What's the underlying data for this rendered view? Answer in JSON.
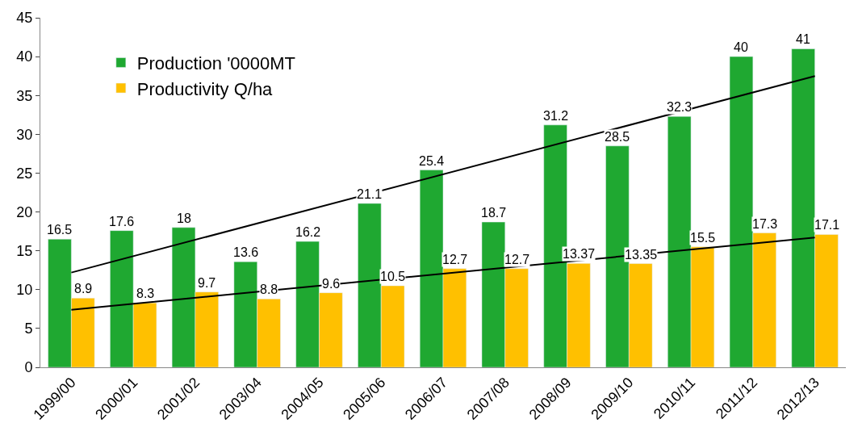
{
  "chart_data": {
    "type": "bar",
    "categories": [
      "1999/00",
      "2000/01",
      "2001/02",
      "2003/04",
      "2004/05",
      "2005/06",
      "2006/07",
      "2007/08",
      "2008/09",
      "2009/10",
      "2010/11",
      "2011/12",
      "2012/13"
    ],
    "series": [
      {
        "name": "Production '0000MT",
        "color": "#1fa831",
        "values": [
          16.5,
          17.6,
          18,
          13.6,
          16.2,
          21.1,
          25.4,
          18.7,
          31.2,
          28.5,
          32.3,
          40,
          41
        ],
        "value_labels": [
          "16.5",
          "17.6",
          "18",
          "13.6",
          "16.2",
          "21.1",
          "25.4",
          "18.7",
          "31.2",
          "28.5",
          "32.3",
          "40",
          "41"
        ]
      },
      {
        "name": "Productivity Q/ha",
        "color": "#ffc000",
        "values": [
          8.9,
          8.3,
          9.7,
          8.8,
          9.6,
          10.5,
          12.7,
          12.7,
          13.37,
          13.35,
          15.5,
          17.3,
          17.1
        ],
        "value_labels": [
          "8.9",
          "8.3",
          "9.7",
          "8.8",
          "9.6",
          "10.5",
          "12.7",
          "12.7",
          "13.37",
          "13.35",
          "15.5",
          "17.3",
          "17.1"
        ]
      },
      {
        "type": "line",
        "color": "#000000",
        "x": [
          "1999/00",
          "2012/13"
        ],
        "values": [
          12.2,
          37.5
        ]
      },
      {
        "type": "line",
        "color": "#000000",
        "x": [
          "1999/00",
          "2012/13"
        ],
        "values": [
          7.4,
          16.7
        ]
      }
    ],
    "ylim": [
      0,
      45
    ],
    "yticks": [
      0,
      5,
      10,
      15,
      20,
      25,
      30,
      35,
      40,
      45
    ],
    "legend": "top left",
    "marker": "none",
    "line_style": "solid"
  }
}
